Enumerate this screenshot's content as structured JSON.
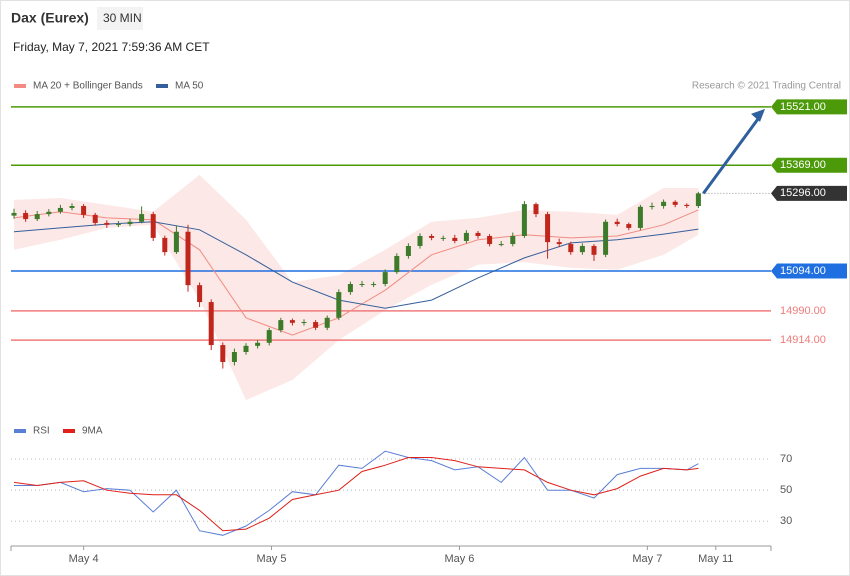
{
  "header": {
    "title": "Dax (Eurex)",
    "interval": "30 MIN",
    "timestamp": "Friday, May 7, 2021 7:59:36 AM CET",
    "credit": "Research © 2021 Trading Central"
  },
  "chart_data": [
    {
      "type": "candlestick",
      "x": [
        0,
        1,
        2,
        3,
        4,
        5,
        6,
        7,
        8,
        9,
        10,
        11,
        12,
        13,
        14,
        15,
        16,
        17,
        18,
        19,
        20,
        21,
        22,
        23,
        24,
        25,
        26,
        27,
        28,
        29,
        30,
        31,
        32,
        33,
        34,
        35,
        36,
        37,
        38,
        39,
        40,
        41,
        42,
        43,
        44,
        45,
        46,
        47,
        48,
        49,
        50,
        51,
        52,
        53,
        54,
        55,
        56,
        57,
        58,
        59
      ],
      "open": [
        15238,
        15245,
        15229,
        15242,
        15248,
        15258,
        15263,
        15240,
        15219,
        15214,
        15216,
        15222,
        15242,
        15180,
        15143,
        15196,
        15057,
        15013,
        14901,
        14857,
        14883,
        14899,
        14907,
        14940,
        14966,
        14959,
        14961,
        14946,
        14972,
        15039,
        15060,
        15060,
        15060,
        15091,
        15133,
        15159,
        15185,
        15180,
        15180,
        15172,
        15193,
        15185,
        15164,
        15164,
        15185,
        15268,
        15242,
        15169,
        15164,
        15143,
        15159,
        15136,
        15222,
        15216,
        15206,
        15261,
        15263,
        15274,
        15266,
        15263
      ],
      "high": [
        15256,
        15252,
        15250,
        15255,
        15266,
        15270,
        15268,
        15245,
        15226,
        15224,
        15230,
        15262,
        15248,
        15186,
        15212,
        15214,
        15064,
        15020,
        14908,
        14892,
        14906,
        14914,
        14946,
        14972,
        14970,
        14968,
        14966,
        14978,
        15046,
        15066,
        15068,
        15066,
        15098,
        15140,
        15166,
        15192,
        15190,
        15186,
        15188,
        15200,
        15198,
        15190,
        15172,
        15194,
        15276,
        15272,
        15248,
        15178,
        15170,
        15166,
        15164,
        15228,
        15230,
        15220,
        15266,
        15272,
        15280,
        15278,
        15270,
        15300
      ],
      "low": [
        15230,
        15222,
        15224,
        15236,
        15243,
        15252,
        15232,
        15212,
        15206,
        15208,
        15210,
        15218,
        15172,
        15134,
        15138,
        15040,
        15000,
        14888,
        14840,
        14848,
        14876,
        14892,
        14900,
        14934,
        14952,
        14952,
        14940,
        14940,
        14966,
        15032,
        15052,
        15052,
        15054,
        15086,
        15126,
        15152,
        15174,
        15172,
        15166,
        15166,
        15178,
        15158,
        15158,
        15158,
        15180,
        15234,
        15126,
        15156,
        15136,
        15136,
        15120,
        15130,
        15210,
        15200,
        15200,
        15254,
        15256,
        15260,
        15258,
        15258
      ],
      "close": [
        15245,
        15229,
        15242,
        15248,
        15258,
        15263,
        15240,
        15219,
        15214,
        15216,
        15222,
        15242,
        15180,
        15143,
        15196,
        15057,
        15013,
        14901,
        14857,
        14883,
        14899,
        14907,
        14940,
        14966,
        14959,
        14961,
        14946,
        14972,
        15039,
        15060,
        15060,
        15060,
        15091,
        15133,
        15159,
        15185,
        15180,
        15180,
        15172,
        15193,
        15185,
        15164,
        15164,
        15185,
        15268,
        15242,
        15169,
        15164,
        15143,
        15159,
        15136,
        15222,
        15216,
        15206,
        15261,
        15263,
        15274,
        15266,
        15263,
        15296
      ],
      "up_color": "#3d7a2a",
      "down_color": "#c0261c",
      "series": [
        {
          "name": "MA 20 + Bollinger Bands",
          "color": "#f28b82",
          "x": [
            0,
            4,
            8,
            12,
            16,
            20,
            24,
            28,
            32,
            36,
            40,
            44,
            48,
            52,
            56,
            59
          ],
          "values": [
            15232,
            15248,
            15232,
            15227,
            15149,
            14972,
            14927,
            14972,
            15044,
            15136,
            15175,
            15188,
            15180,
            15185,
            15214,
            15253
          ],
          "upper": [
            15279,
            15284,
            15266,
            15248,
            15344,
            15227,
            15065,
            15083,
            15149,
            15222,
            15232,
            15253,
            15248,
            15240,
            15310,
            15310
          ],
          "lower": [
            15149,
            15175,
            15206,
            15214,
            15019,
            14758,
            14810,
            14914,
            14992,
            15058,
            15110,
            15117,
            15102,
            15097,
            15136,
            15188
          ]
        },
        {
          "name": "MA 50",
          "color": "#355f9c",
          "x": [
            0,
            4,
            8,
            12,
            16,
            20,
            24,
            28,
            32,
            36,
            40,
            44,
            48,
            52,
            56,
            59
          ],
          "values": [
            15196,
            15206,
            15216,
            15222,
            15201,
            15136,
            15065,
            15018,
            14997,
            15018,
            15076,
            15128,
            15167,
            15175,
            15190,
            15203
          ]
        }
      ],
      "levels": [
        {
          "value": 15521,
          "label": "15521.00",
          "color": "#4c9a0a",
          "boxed": true,
          "dotted": false
        },
        {
          "value": 15369,
          "label": "15369.00",
          "color": "#4c9a0a",
          "boxed": true,
          "dotted": false
        },
        {
          "value": 15296,
          "label": "15296.00",
          "color": "#333333",
          "boxed": true,
          "dotted": true
        },
        {
          "value": 15094,
          "label": "15094.00",
          "color": "#1f6fe0",
          "boxed": true,
          "dotted": false
        },
        {
          "value": 14990,
          "label": "14990.00",
          "color": "#f07b7b",
          "boxed": false,
          "dotted": false
        },
        {
          "value": 14914,
          "label": "14914.00",
          "color": "#f07b7b",
          "boxed": false,
          "dotted": false
        }
      ],
      "xlim": [
        -0.26,
        65.26
      ],
      "ylim": [
        14719,
        15552
      ]
    },
    {
      "type": "line",
      "series": [
        {
          "name": "RSI",
          "color": "#5b7fd6",
          "x": [
            0,
            2,
            4,
            6,
            8,
            10,
            12,
            14,
            16,
            18,
            20,
            22,
            24,
            26,
            28,
            30,
            32,
            34,
            36,
            38,
            40,
            42,
            44,
            46,
            48,
            50,
            52,
            54,
            56,
            58,
            59
          ],
          "values": [
            53,
            53,
            55,
            49,
            51,
            50,
            36,
            50,
            24,
            21,
            27,
            37,
            49,
            47,
            66,
            64,
            75,
            71,
            69,
            63,
            65,
            55,
            71,
            50,
            50,
            45,
            60,
            64,
            64,
            63,
            67
          ]
        },
        {
          "name": "9MA",
          "color": "#e0201a",
          "x": [
            0,
            2,
            4,
            6,
            8,
            10,
            12,
            14,
            16,
            18,
            20,
            22,
            24,
            26,
            28,
            30,
            32,
            34,
            36,
            38,
            40,
            42,
            44,
            46,
            48,
            50,
            52,
            54,
            56,
            58,
            59
          ],
          "values": [
            55,
            53,
            55,
            56,
            50,
            48,
            47,
            47,
            37,
            24,
            25,
            32,
            44,
            47,
            50,
            62,
            66,
            71,
            71,
            69,
            65,
            64,
            63,
            55,
            50,
            47,
            51,
            59,
            64,
            63,
            64
          ]
        }
      ],
      "xlim": [
        -0.26,
        65.26
      ],
      "ylim": [
        18,
        79
      ],
      "yticks": [
        30,
        50,
        70
      ],
      "grid": true,
      "xticks": [
        {
          "value": 6,
          "label": "May 4"
        },
        {
          "value": 22.2,
          "label": "May 5"
        },
        {
          "value": 38.4,
          "label": "May 6"
        },
        {
          "value": 54.6,
          "label": "May 7"
        },
        {
          "value": 60.5,
          "label": "May 11"
        }
      ]
    }
  ]
}
